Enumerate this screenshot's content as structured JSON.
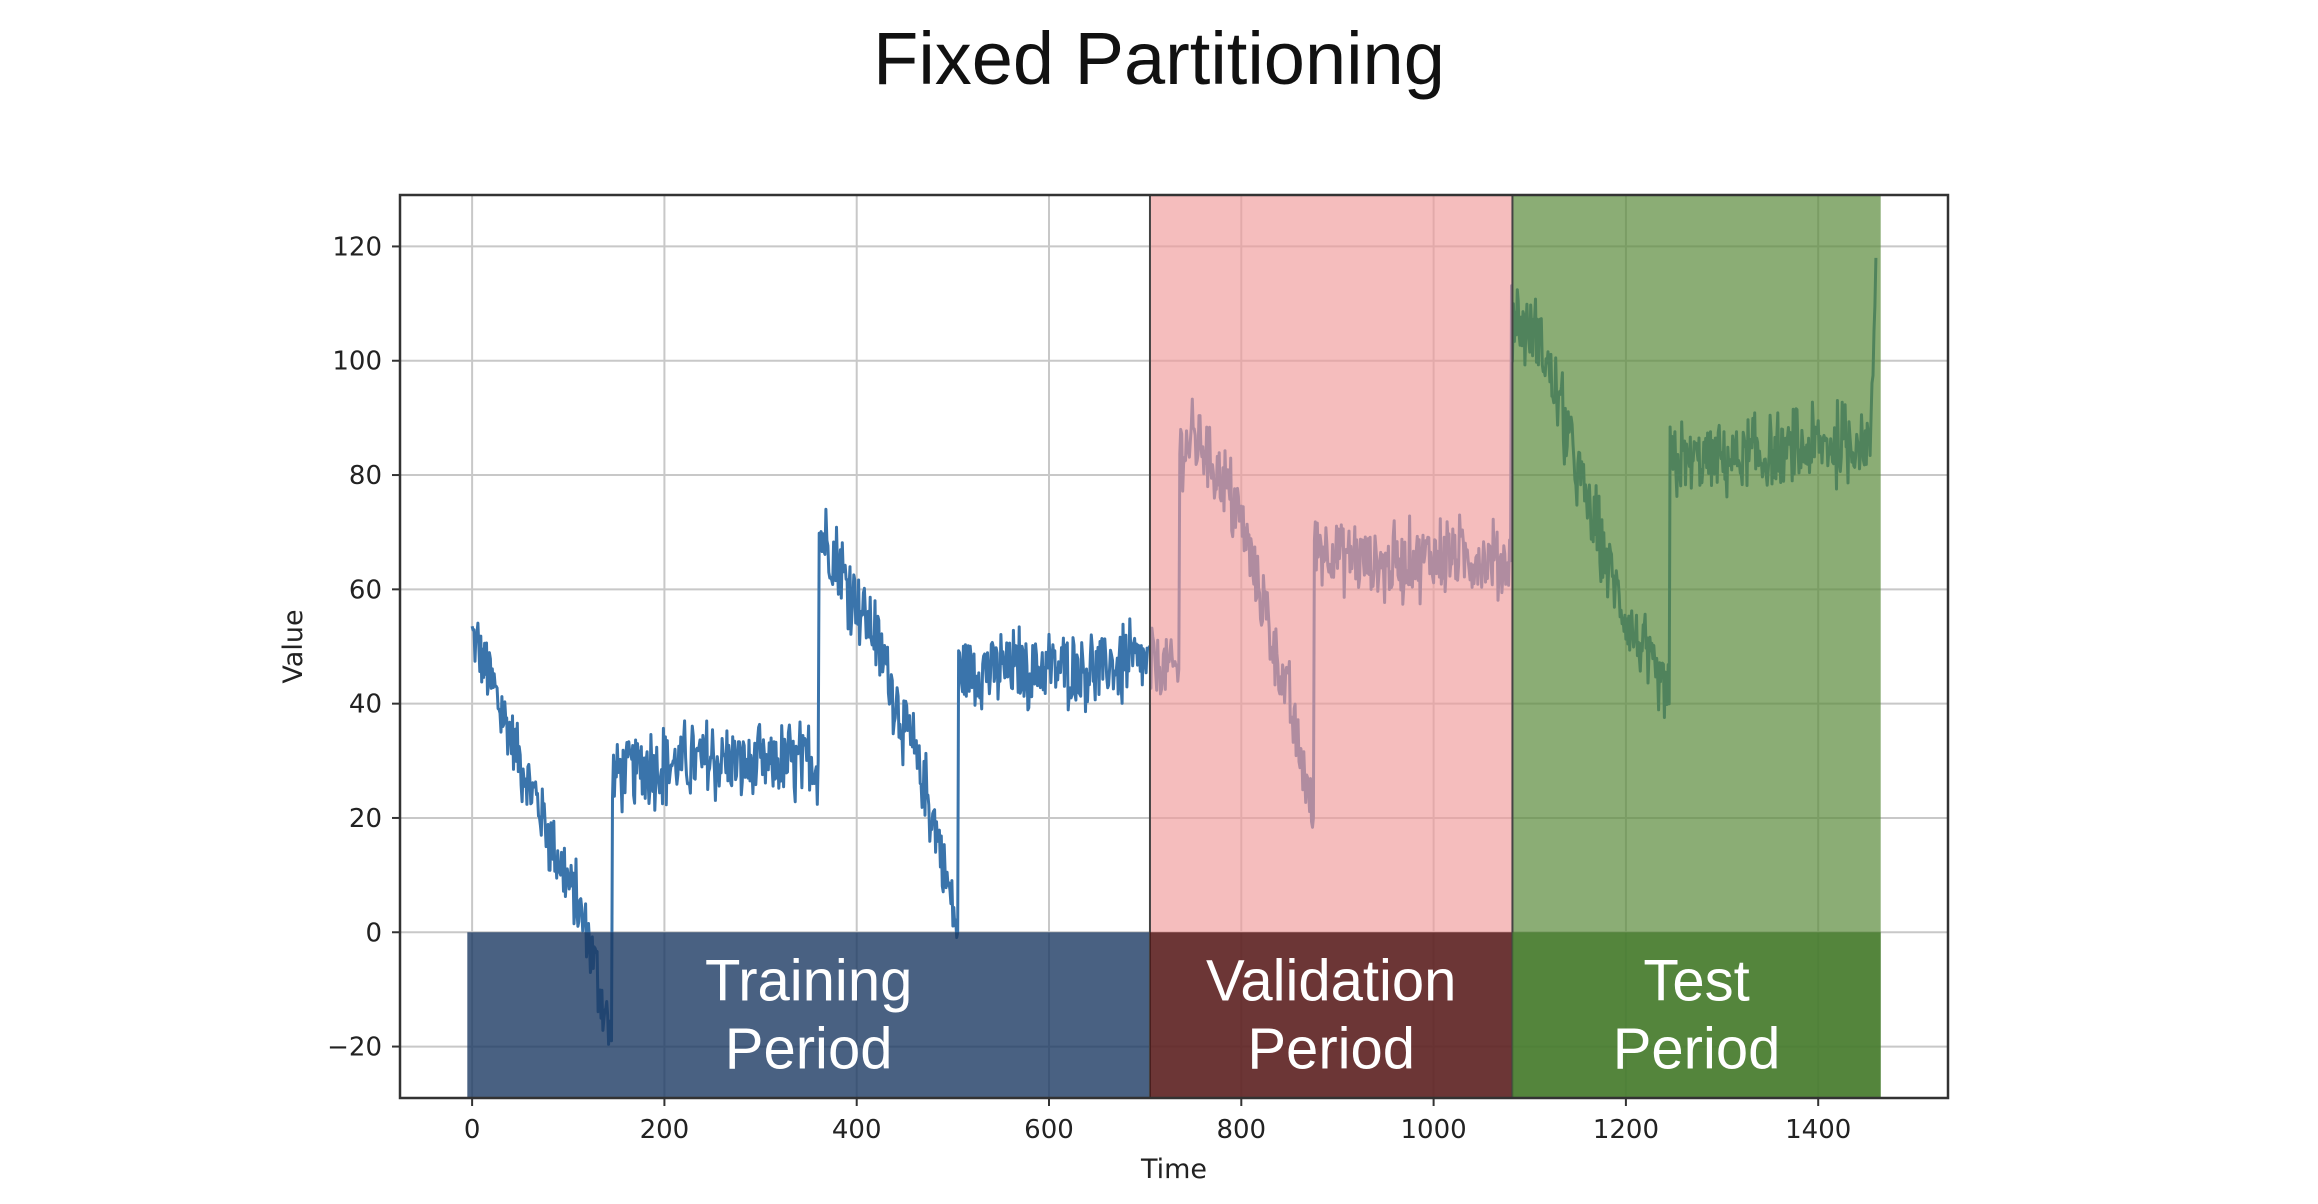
{
  "slide": {
    "title": "Fixed Partitioning"
  },
  "chart_data": {
    "type": "line",
    "title": "Fixed Partitioning",
    "xlabel": "Time",
    "ylabel": "Value",
    "xlim": [
      -75,
      1535
    ],
    "ylim": [
      -29,
      129
    ],
    "xticks": [
      0,
      200,
      400,
      600,
      800,
      1000,
      1200,
      1400
    ],
    "yticks": [
      -20,
      0,
      20,
      40,
      60,
      80,
      100,
      120
    ],
    "ytick_labels": [
      "−20",
      "0",
      "20",
      "40",
      "60",
      "80",
      "100",
      "120"
    ],
    "grid": true,
    "series": [
      {
        "color": "#3a74ab",
        "noise_amplitude": 5,
        "baseline": [
          [
            0,
            52
          ],
          [
            120,
            0
          ],
          [
            145,
            -19
          ],
          [
            146,
            28
          ],
          [
            180,
            29
          ],
          [
            250,
            30
          ],
          [
            300,
            29
          ],
          [
            360,
            30
          ],
          [
            361,
            70
          ],
          [
            420,
            52
          ],
          [
            480,
            20
          ],
          [
            505,
            0
          ],
          [
            506,
            46
          ],
          [
            600,
            46
          ],
          [
            700,
            47
          ],
          [
            735,
            46
          ],
          [
            736,
            85
          ],
          [
            760,
            86
          ],
          [
            800,
            72
          ],
          [
            850,
            40
          ],
          [
            875,
            20
          ],
          [
            876,
            68
          ],
          [
            950,
            64
          ],
          [
            1000,
            66
          ],
          [
            1080,
            65
          ],
          [
            1081,
            108
          ],
          [
            1110,
            104
          ],
          [
            1160,
            75
          ],
          [
            1200,
            55
          ],
          [
            1245,
            40
          ],
          [
            1246,
            82
          ],
          [
            1300,
            83
          ],
          [
            1350,
            83
          ],
          [
            1400,
            85
          ],
          [
            1455,
            86
          ],
          [
            1460,
            118
          ]
        ]
      }
    ],
    "periods": [
      {
        "name": "Training",
        "label_line1": "Training",
        "label_line2": "Period",
        "x_start": -5,
        "x_end": 705,
        "band_color": "#ffffff",
        "band_opacity": 0,
        "bar_color": "#1c3a63"
      },
      {
        "name": "Validation",
        "label_line1": "Validation",
        "label_line2": "Period",
        "x_start": 705,
        "x_end": 1082,
        "band_color": "#ef9a9a",
        "band_opacity": 0.65,
        "bar_color": "#4a1414"
      },
      {
        "name": "Test",
        "label_line1": "Test",
        "label_line2": "Period",
        "x_start": 1082,
        "x_end": 1465,
        "band_color": "#5a8a3a",
        "band_opacity": 0.7,
        "bar_color": "#467a2e"
      }
    ],
    "bar_y_range": [
      -29,
      0
    ]
  }
}
